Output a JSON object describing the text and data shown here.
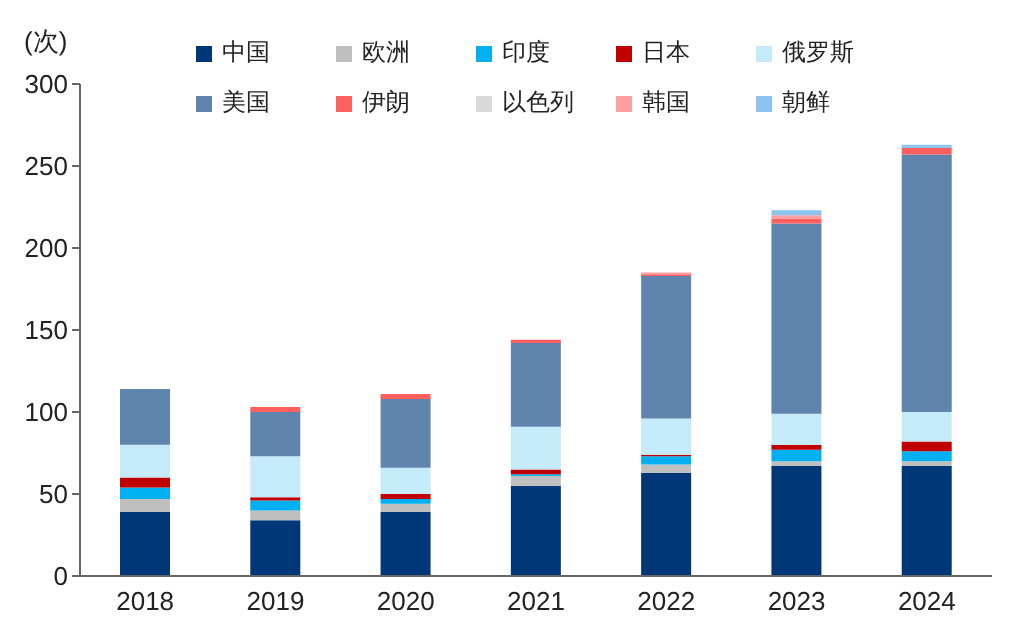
{
  "chart_data": {
    "type": "bar",
    "stacked": true,
    "ylabel": "(次)",
    "legend": "top",
    "categories": [
      "2018",
      "2019",
      "2020",
      "2021",
      "2022",
      "2023",
      "2024"
    ],
    "ylim": [
      0,
      300
    ],
    "yticks": [
      0,
      50,
      100,
      150,
      200,
      250,
      300
    ],
    "series": [
      {
        "name": "中国",
        "color": "#003778",
        "values": [
          39,
          34,
          39,
          55,
          63,
          67,
          67
        ]
      },
      {
        "name": "欧洲",
        "color": "#bfbfbf",
        "values": [
          8,
          6,
          5,
          6,
          5,
          3,
          3
        ]
      },
      {
        "name": "印度",
        "color": "#00b0f0",
        "values": [
          7,
          6,
          3,
          1,
          5,
          7,
          6
        ]
      },
      {
        "name": "日本",
        "color": "#c00000",
        "values": [
          6,
          2,
          3,
          3,
          1,
          3,
          6
        ]
      },
      {
        "name": "俄罗斯",
        "color": "#c5eafa",
        "values": [
          20,
          25,
          16,
          26,
          22,
          19,
          18
        ]
      },
      {
        "name": "美国",
        "color": "#5f84ad",
        "values": [
          34,
          27,
          42,
          51,
          87,
          116,
          157
        ]
      },
      {
        "name": "伊朗",
        "color": "#ff5f5f",
        "values": [
          0,
          3,
          3,
          2,
          1,
          3,
          4
        ]
      },
      {
        "name": "以色列",
        "color": "#d9d9d9",
        "values": [
          0,
          0,
          0,
          0,
          0,
          0,
          0
        ]
      },
      {
        "name": "韩国",
        "color": "#ff9f9f",
        "values": [
          0,
          0,
          0,
          0,
          1,
          2,
          0
        ]
      },
      {
        "name": "朝鲜",
        "color": "#8cc4f0",
        "values": [
          0,
          0,
          0,
          0,
          0,
          3,
          2
        ]
      }
    ]
  }
}
